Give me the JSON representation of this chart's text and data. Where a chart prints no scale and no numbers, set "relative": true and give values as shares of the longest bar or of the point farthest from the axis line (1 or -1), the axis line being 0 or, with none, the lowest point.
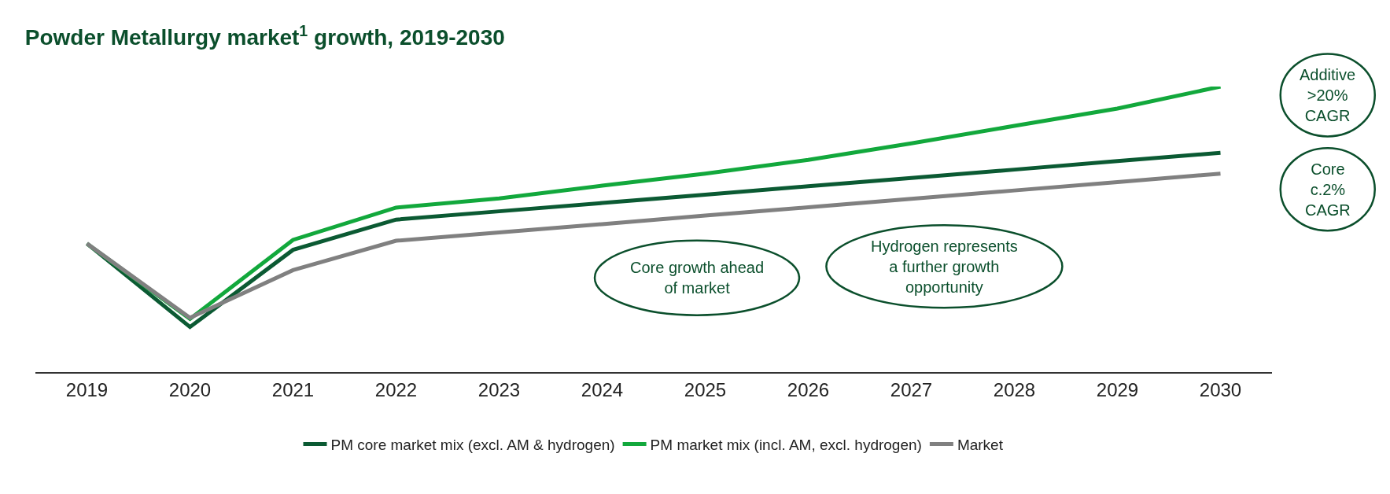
{
  "chart_data": {
    "type": "line",
    "title": "Powder Metallurgy market$^{1}$ growth, 2019-2030",
    "relative": true,
    "categories": [
      "2019",
      "2020",
      "2021",
      "2022",
      "2023",
      "2024",
      "2025",
      "2026",
      "2027",
      "2028",
      "2029",
      "2030"
    ],
    "series": [
      {
        "name": "PM core market mix (excl. AM & hydrogen)",
        "color": "#0b5a33",
        "values": [
          0.45,
          0.158,
          0.428,
          0.534,
          0.563,
          0.592,
          0.621,
          0.651,
          0.68,
          0.709,
          0.739,
          0.768
        ]
      },
      {
        "name": "PM market mix (incl. AM, excl. hydrogen)",
        "color": "#12a83c",
        "values": [
          0.45,
          0.186,
          0.463,
          0.576,
          0.608,
          0.653,
          0.695,
          0.743,
          0.801,
          0.862,
          0.923,
          1
        ]
      },
      {
        "name": "Market",
        "color": "#808080",
        "values": [
          0.45,
          0.19,
          0.357,
          0.46,
          0.489,
          0.518,
          0.548,
          0.577,
          0.607,
          0.636,
          0.665,
          0.695
        ]
      }
    ],
    "annotations": [
      "Additive\n>20%\nCAGR",
      "Core\nc.2%\nCAGR",
      "Core growth ahead\nof market",
      "Hydrogen represents\na further growth\nopportunity"
    ],
    "legend": "bottom",
    "grid": false,
    "marker": "none",
    "line_style": "solid"
  }
}
